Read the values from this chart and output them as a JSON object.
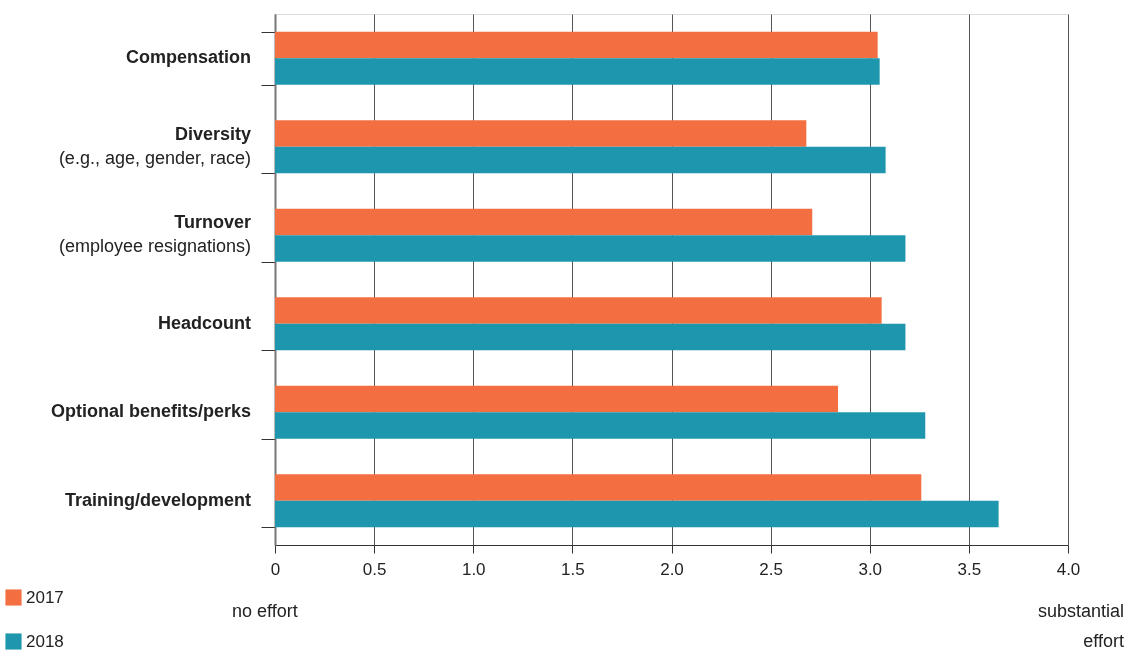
{
  "chart_data": {
    "type": "bar",
    "orientation": "horizontal",
    "categories": [
      "Compensation",
      "Diversity\n(e.g., age, gender, race)",
      "Turnover\n(employee resignations)",
      "Headcount",
      "Optional benefits/perks",
      "Training/development"
    ],
    "series": [
      {
        "name": "2017",
        "color": "#f36f41",
        "values": [
          3.04,
          2.68,
          2.71,
          3.06,
          2.84,
          3.26
        ]
      },
      {
        "name": "2018",
        "color": "#1e97ae",
        "values": [
          3.05,
          3.08,
          3.18,
          3.18,
          3.28,
          3.65
        ]
      }
    ],
    "xlim": [
      0,
      4
    ],
    "xticks": [
      0,
      0.5,
      {
        "value": 1,
        "label": "1.0"
      },
      1.5,
      {
        "value": 2,
        "label": "2.0"
      },
      2.5,
      {
        "value": 3,
        "label": "3.0"
      },
      3.5,
      {
        "value": 4,
        "label": "4.0"
      }
    ],
    "grid": "x",
    "legend": "bottom left",
    "annotations": [
      "no effort",
      "substantial\neffort"
    ]
  }
}
